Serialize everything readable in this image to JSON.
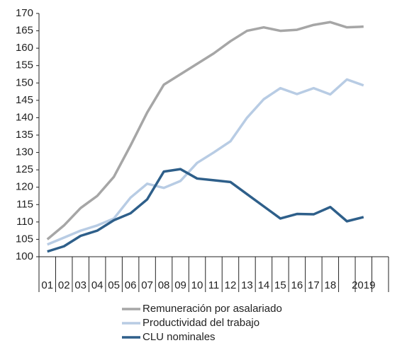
{
  "chart_data": {
    "type": "line",
    "categories": [
      "01",
      "02",
      "03",
      "04",
      "05",
      "06",
      "07",
      "08",
      "09",
      "10",
      "11",
      "12",
      "13",
      "14",
      "15",
      "16",
      "17",
      "18",
      null,
      "2019",
      null
    ],
    "series": [
      {
        "name": "Remuneración por asalariado",
        "color": "#a6a6a6",
        "values": [
          105,
          109,
          114,
          117.5,
          123,
          132,
          141.5,
          149.5,
          152.5,
          155.5,
          158.5,
          162,
          165,
          166,
          165,
          165.3,
          166.7,
          167.5,
          166,
          166.2,
          null
        ]
      },
      {
        "name": "Productividad del trabajo",
        "color": "#b8cce4",
        "values": [
          103.5,
          105.5,
          107.5,
          109,
          111,
          117,
          121,
          119.8,
          121.8,
          127,
          130,
          133.2,
          140,
          145.3,
          148.5,
          146.8,
          148.5,
          146.7,
          151,
          149.3,
          null
        ]
      },
      {
        "name": "CLU nominales",
        "color": "#2e5f8a",
        "values": [
          101.5,
          103,
          106,
          107.5,
          110.5,
          112.5,
          116.5,
          124.5,
          125.2,
          122.5,
          122,
          121.5,
          118,
          114.5,
          111,
          112.3,
          112.2,
          114.3,
          110.2,
          111.4,
          null
        ]
      }
    ],
    "ylim": [
      100,
      170
    ],
    "yticks": [
      100,
      105,
      110,
      115,
      120,
      125,
      130,
      135,
      140,
      145,
      150,
      155,
      160,
      165,
      170
    ],
    "grid": false
  }
}
